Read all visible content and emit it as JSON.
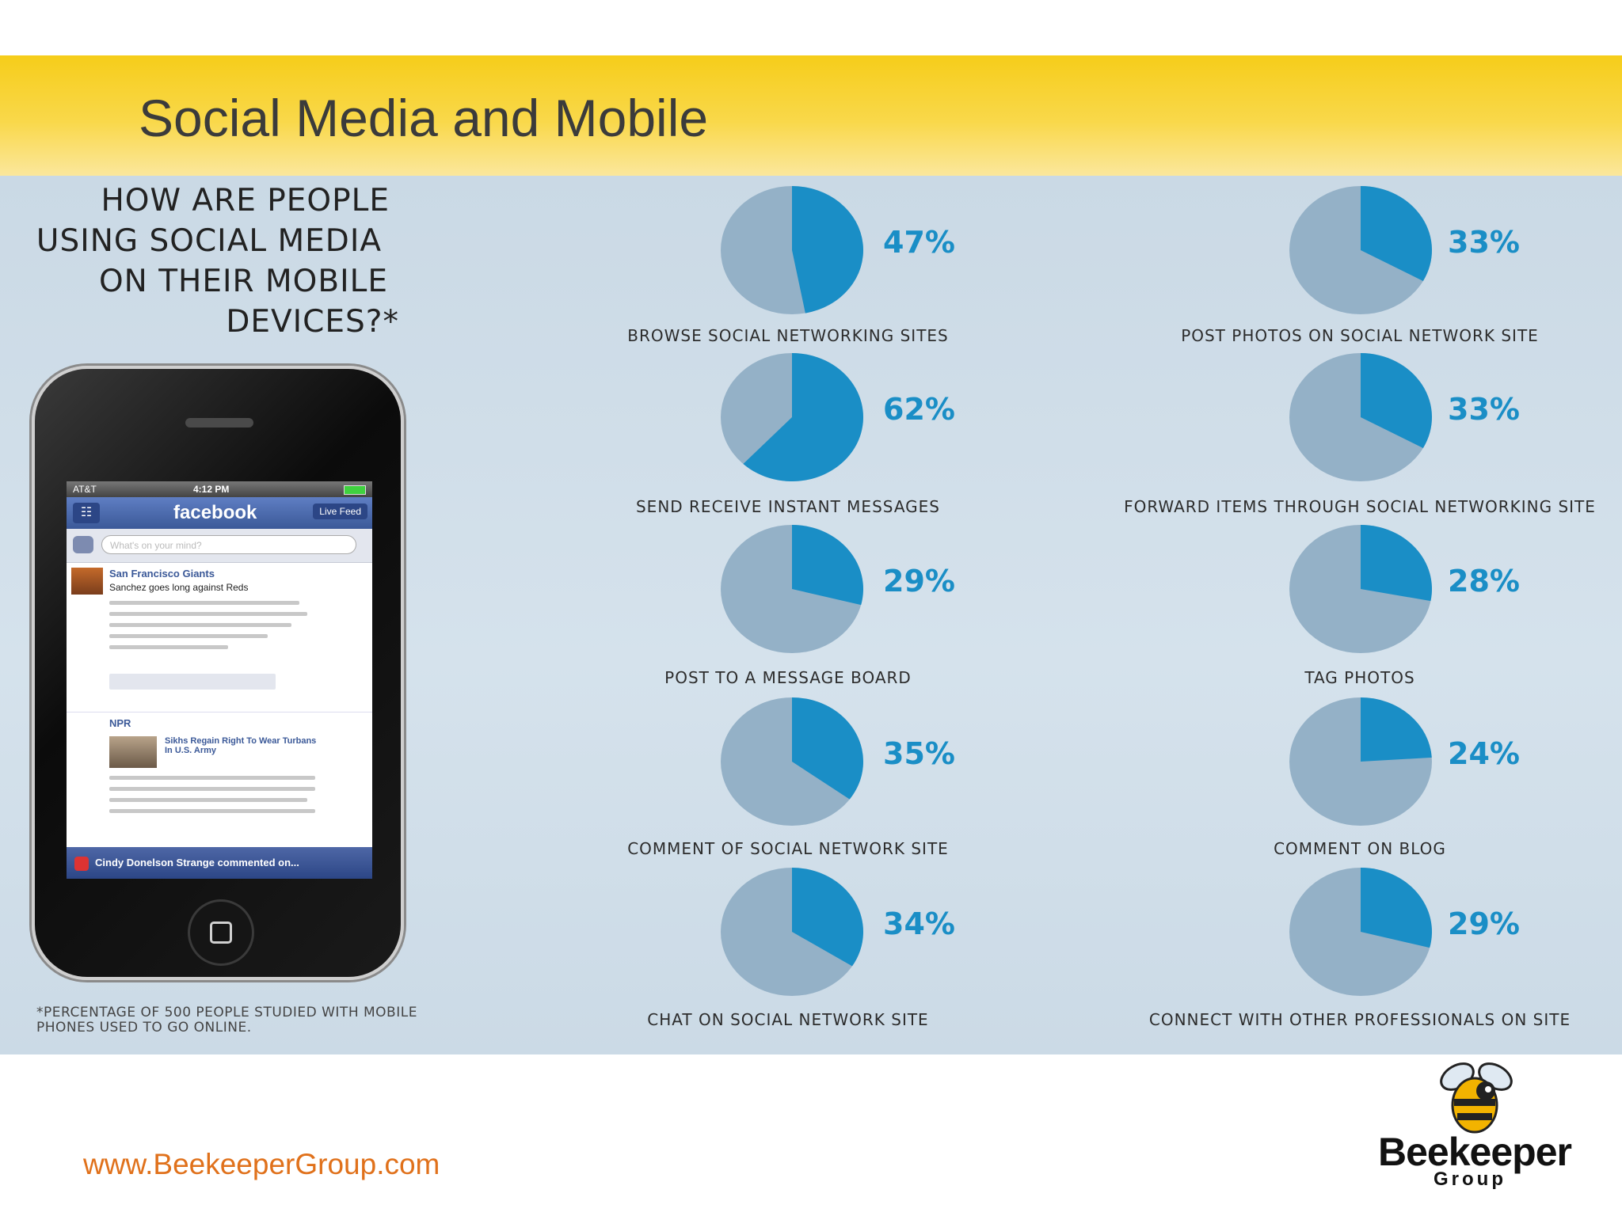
{
  "slide": {
    "title": "Social Media and Mobile",
    "url": "www.BeekeeperGroup.com",
    "logo": {
      "word": "Beekeeper",
      "sub": "Group",
      "icon": "bee-icon"
    }
  },
  "infographic": {
    "question": [
      "HOW ARE PEOPLE",
      "USING SOCIAL MEDIA",
      "ON THEIR MOBILE",
      "DEVICES?*"
    ],
    "footnote": [
      "*PERCENTAGE OF 500 PEOPLE STUDIED WITH MOBILE",
      "PHONES USED TO GO ONLINE."
    ]
  },
  "phone": {
    "carrier": "AT&T",
    "time": "4:12 PM",
    "app": "facebook",
    "live_feed": "Live Feed",
    "prompt": "What's on your mind?",
    "post1": {
      "source": "San Francisco Giants",
      "headline": "Sanchez goes long against Reds"
    },
    "post2": {
      "source": "NPR",
      "headline": "Sikhs Regain Right To Wear Turbans In U.S. Army"
    },
    "notification": "Cindy Donelson Strange commented on..."
  },
  "colors": {
    "accent": "#1a8ec6",
    "slice_rest": "#94b1c7",
    "banner": "#f6cd1a",
    "url": "#e0711b"
  },
  "chart_data": {
    "type": "pie",
    "unit": "%",
    "series": [
      {
        "label": "BROWSE SOCIAL NETWORKING SITES",
        "value": 47,
        "value_label": "47%"
      },
      {
        "label": "SEND RECEIVE INSTANT MESSAGES",
        "value": 62,
        "value_label": "62%"
      },
      {
        "label": "POST TO A MESSAGE BOARD",
        "value": 29,
        "value_label": "29%"
      },
      {
        "label": "COMMENT OF SOCIAL NETWORK SITE",
        "value": 35,
        "value_label": "35%"
      },
      {
        "label": "CHAT ON SOCIAL NETWORK SITE",
        "value": 34,
        "value_label": "34%"
      },
      {
        "label": "POST PHOTOS ON SOCIAL NETWORK SITE",
        "value": 33,
        "value_label": "33%"
      },
      {
        "label": "FORWARD ITEMS THROUGH SOCIAL NETWORKING SITE",
        "value": 33,
        "value_label": "33%"
      },
      {
        "label": "TAG PHOTOS",
        "value": 28,
        "value_label": "28%"
      },
      {
        "label": "COMMENT ON BLOG",
        "value": 24,
        "value_label": "24%"
      },
      {
        "label": "CONNECT WITH OTHER PROFESSIONALS ON SITE",
        "value": 29,
        "value_label": "29%"
      }
    ]
  }
}
